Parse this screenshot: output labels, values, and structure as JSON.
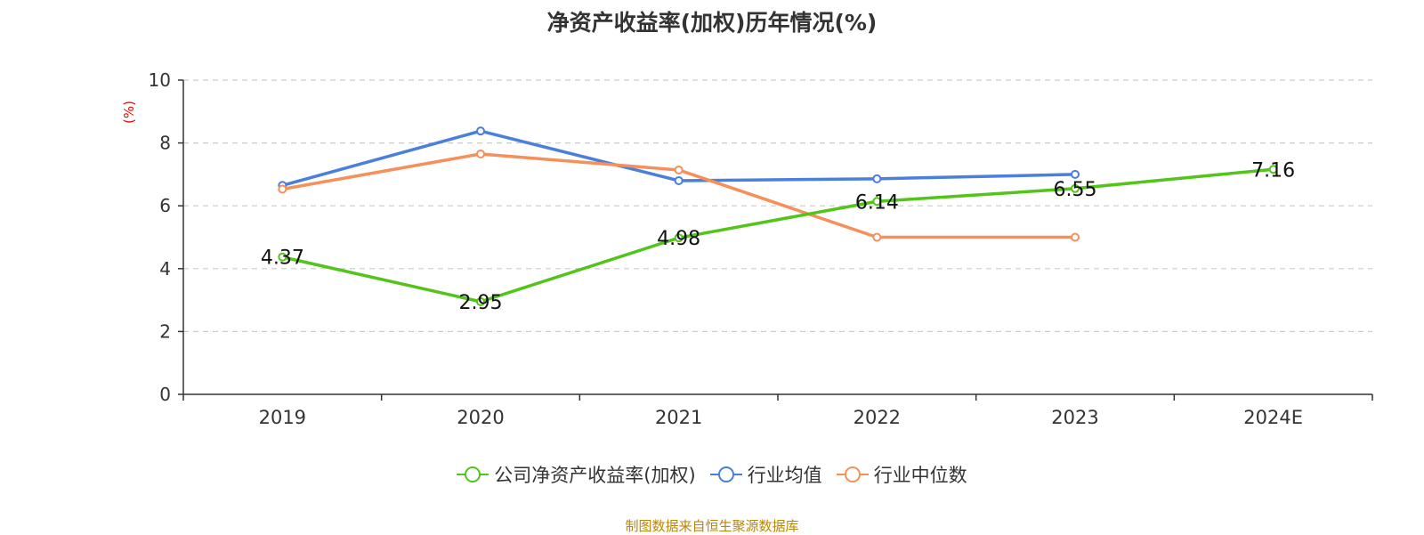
{
  "chart_data": {
    "type": "line",
    "title": "净资产收益率(加权)历年情况(%)",
    "ylabel": "(%)",
    "xlabel": "",
    "categories": [
      "2019",
      "2020",
      "2021",
      "2022",
      "2023",
      "2024E"
    ],
    "ylim": [
      0,
      10
    ],
    "yticks": [
      0,
      2,
      4,
      6,
      8,
      10
    ],
    "grid": true,
    "legend_position": "bottom-center",
    "series": [
      {
        "name": "公司净资产收益率(加权)",
        "color": "#52c41a",
        "values": [
          4.37,
          2.95,
          4.98,
          6.14,
          6.55,
          7.16
        ],
        "show_labels": true
      },
      {
        "name": "行业均值",
        "color": "#4a7fdc",
        "values": [
          6.65,
          8.38,
          6.8,
          6.86,
          7.0,
          null
        ],
        "show_labels": false
      },
      {
        "name": "行业中位数",
        "color": "#f5905a",
        "values": [
          6.53,
          7.65,
          7.14,
          5.0,
          5.0,
          null
        ],
        "show_labels": false
      }
    ],
    "source": "制图数据来自恒生聚源数据库"
  }
}
